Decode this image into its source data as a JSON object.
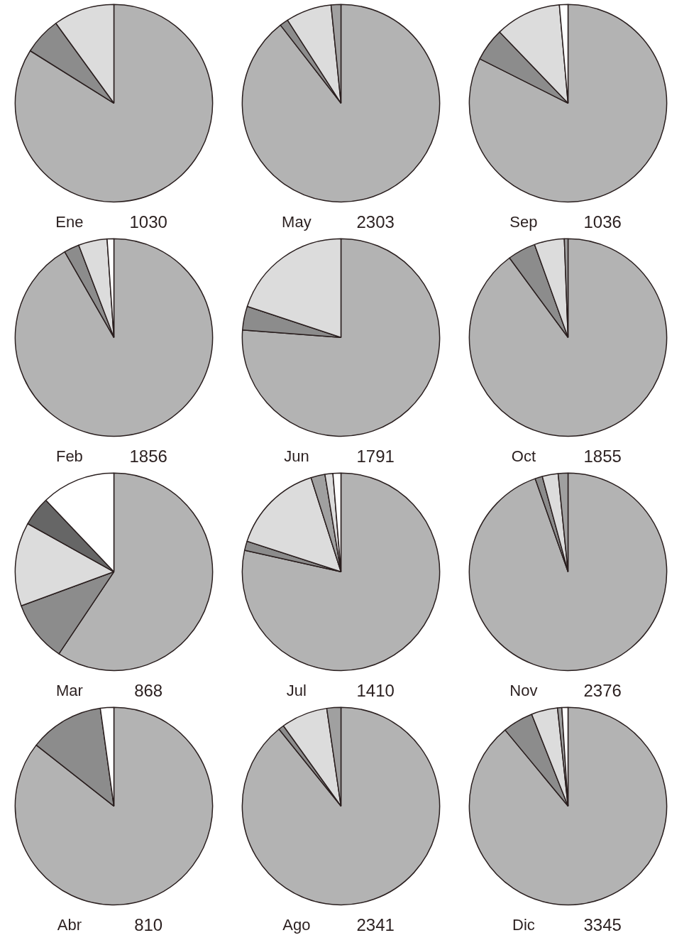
{
  "chart_data": [
    {
      "type": "pie",
      "title": "Ene",
      "annotations": [
        "1030"
      ],
      "categories": [
        null,
        null,
        null
      ],
      "values": [
        83.9,
        6.1,
        10.0
      ],
      "colors": [
        "#b3b3b3",
        "#8c8c8c",
        "#dcdcdc"
      ]
    },
    {
      "type": "pie",
      "title": "May",
      "annotations": [
        "2303"
      ],
      "categories": [
        null,
        null,
        null,
        null
      ],
      "values": [
        89.5,
        1.4,
        7.5,
        1.6
      ],
      "colors": [
        "#b3b3b3",
        "#8c8c8c",
        "#dcdcdc",
        "#a0a0a0"
      ]
    },
    {
      "type": "pie",
      "title": "Sep",
      "annotations": [
        "1036"
      ],
      "categories": [
        null,
        null,
        null,
        null
      ],
      "values": [
        82.4,
        5.4,
        10.8,
        1.4
      ],
      "colors": [
        "#b3b3b3",
        "#8c8c8c",
        "#dcdcdc",
        "#ffffff"
      ]
    },
    {
      "type": "pie",
      "title": "Feb",
      "annotations": [
        "1856"
      ],
      "categories": [
        null,
        null,
        null,
        null
      ],
      "values": [
        91.7,
        2.5,
        4.7,
        1.1
      ],
      "colors": [
        "#b3b3b3",
        "#8c8c8c",
        "#dcdcdc",
        "#ffffff"
      ]
    },
    {
      "type": "pie",
      "title": "Jun",
      "annotations": [
        "1791"
      ],
      "categories": [
        null,
        null,
        null
      ],
      "values": [
        76.2,
        3.9,
        19.9
      ],
      "colors": [
        "#b3b3b3",
        "#8c8c8c",
        "#dcdcdc"
      ]
    },
    {
      "type": "pie",
      "title": "Oct",
      "annotations": [
        "1855"
      ],
      "categories": [
        null,
        null,
        null,
        null
      ],
      "values": [
        89.9,
        4.6,
        4.9,
        0.6
      ],
      "colors": [
        "#b3b3b3",
        "#8c8c8c",
        "#dcdcdc",
        "#a0a0a0"
      ]
    },
    {
      "type": "pie",
      "title": "Mar",
      "annotations": [
        "868"
      ],
      "categories": [
        null,
        null,
        null,
        null,
        null
      ],
      "values": [
        59.4,
        10.0,
        13.7,
        4.8,
        12.1
      ],
      "colors": [
        "#b3b3b3",
        "#8c8c8c",
        "#dcdcdc",
        "#666666",
        "#ffffff"
      ]
    },
    {
      "type": "pie",
      "title": "Jul",
      "annotations": [
        "1410"
      ],
      "categories": [
        null,
        null,
        null,
        null,
        null,
        null
      ],
      "values": [
        78.5,
        1.5,
        15.1,
        2.3,
        1.3,
        1.3
      ],
      "colors": [
        "#b3b3b3",
        "#8c8c8c",
        "#dcdcdc",
        "#a0a0a0",
        "#dcdcdc",
        "#ffffff"
      ]
    },
    {
      "type": "pie",
      "title": "Nov",
      "annotations": [
        "2376"
      ],
      "categories": [
        null,
        null,
        null,
        null
      ],
      "values": [
        94.6,
        1.2,
        2.6,
        1.6
      ],
      "colors": [
        "#b3b3b3",
        "#8c8c8c",
        "#dcdcdc",
        "#a0a0a0"
      ]
    },
    {
      "type": "pie",
      "title": "Abr",
      "annotations": [
        "810"
      ],
      "categories": [
        null,
        null,
        null
      ],
      "values": [
        85.6,
        12.2,
        2.2
      ],
      "colors": [
        "#b3b3b3",
        "#8c8c8c",
        "#ffffff"
      ]
    },
    {
      "type": "pie",
      "title": "Ago",
      "annotations": [
        "2341"
      ],
      "categories": [
        null,
        null,
        null,
        null
      ],
      "values": [
        89.2,
        0.9,
        7.6,
        2.3
      ],
      "colors": [
        "#b3b3b3",
        "#8c8c8c",
        "#dcdcdc",
        "#a0a0a0"
      ]
    },
    {
      "type": "pie",
      "title": "Dic",
      "annotations": [
        "3345"
      ],
      "categories": [
        null,
        null,
        null,
        null,
        null
      ],
      "values": [
        89.0,
        5.0,
        4.3,
        0.7,
        1.0
      ],
      "colors": [
        "#b3b3b3",
        "#8c8c8c",
        "#dcdcdc",
        "#a0a0a0",
        "#ffffff"
      ]
    }
  ]
}
